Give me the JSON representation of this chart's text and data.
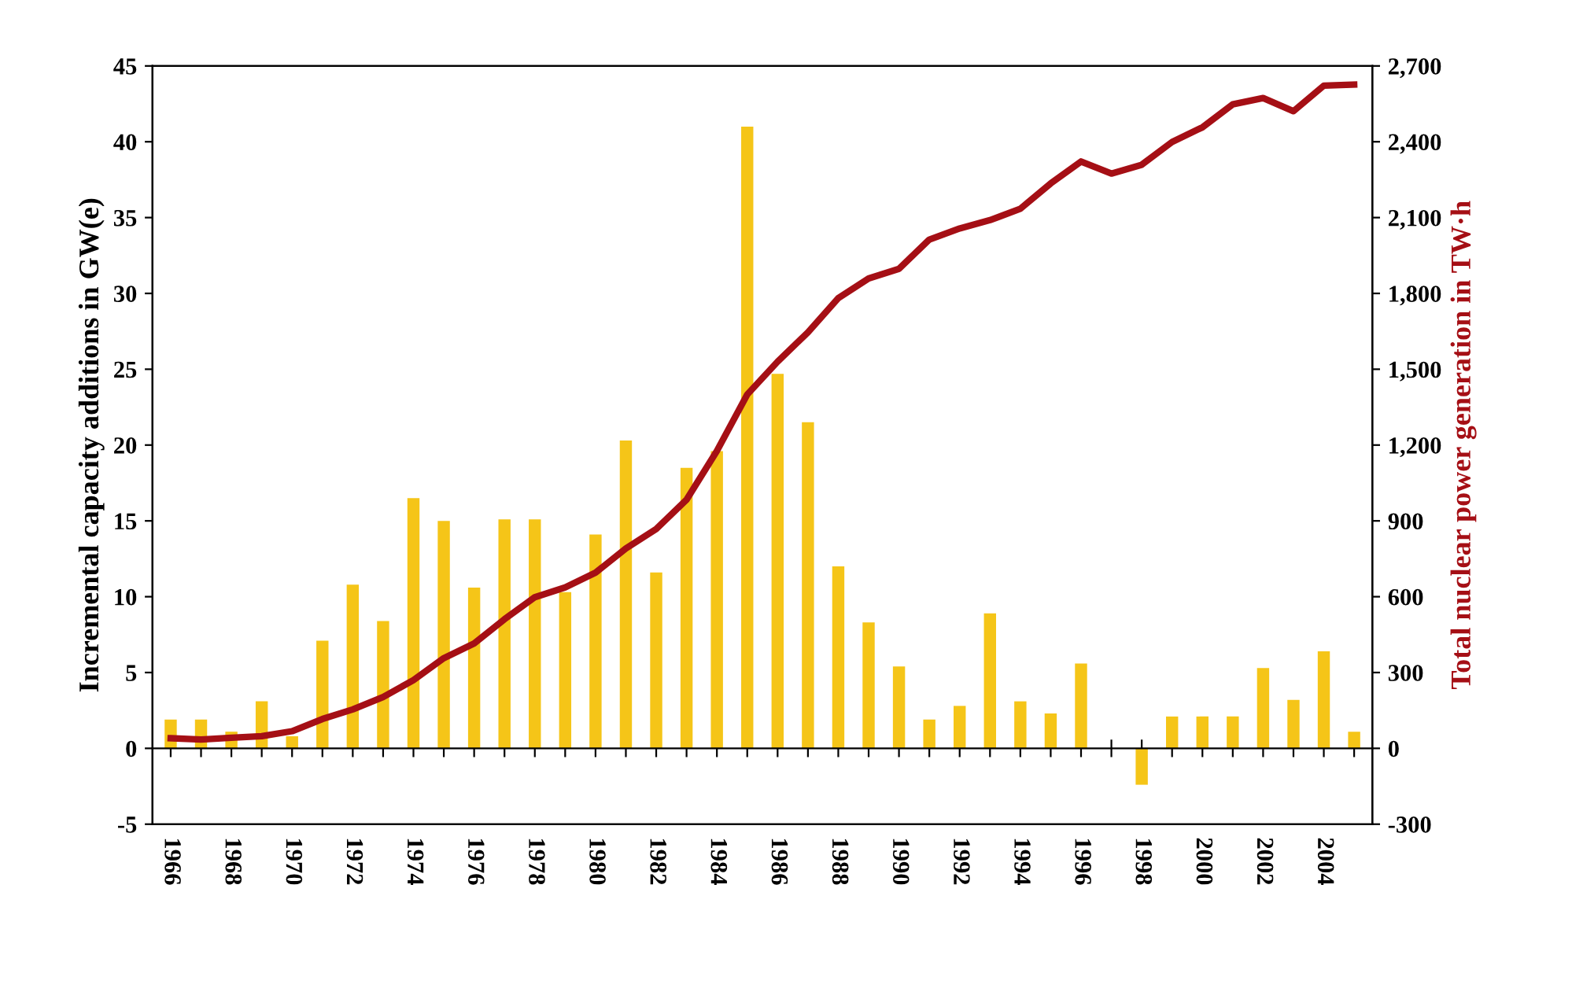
{
  "chart_data": {
    "type": "bar",
    "ylabel": "Incremental capacity additions in GW(e)",
    "y2label": "Total nuclear power generation in TW·h",
    "categories": [
      "1966",
      null,
      "1968",
      null,
      "1970",
      null,
      "1972",
      null,
      "1974",
      null,
      "1976",
      null,
      "1978",
      null,
      "1980",
      null,
      "1982",
      null,
      "1984",
      null,
      "1986",
      null,
      "1988",
      null,
      "1990",
      null,
      "1992",
      null,
      "1994",
      null,
      "1996",
      null,
      "1998",
      null,
      "2000",
      null,
      "2002",
      null,
      "2004",
      null
    ],
    "series": [
      {
        "color": "#f5c518",
        "values": [
          1.9,
          1.9,
          1.1,
          3.1,
          0.8,
          7.1,
          10.8,
          8.4,
          16.5,
          15.0,
          10.6,
          15.1,
          15.1,
          10.3,
          14.1,
          20.3,
          11.6,
          18.5,
          19.6,
          41.0,
          24.7,
          21.5,
          12.0,
          8.3,
          5.4,
          1.9,
          2.8,
          8.9,
          3.1,
          2.3,
          5.6,
          0,
          -2.4,
          2.1,
          2.1,
          2.1,
          5.3,
          3.2,
          6.4,
          1.1
        ]
      },
      {
        "type": "line",
        "axis": "y2",
        "color": "#a50f15",
        "values": [
          40,
          35,
          42,
          48,
          68,
          116,
          154,
          203,
          270,
          357,
          415,
          511,
          598,
          637,
          695,
          791,
          868,
          984,
          1177,
          1400,
          1530,
          1646,
          1781,
          1859,
          1897,
          2013,
          2057,
          2090,
          2135,
          2235,
          2322,
          2274,
          2309,
          2399,
          2457,
          2548,
          2573,
          2521,
          2622,
          2626
        ]
      }
    ],
    "ylim": [
      -5,
      45
    ],
    "yticks": [
      -5,
      0,
      5,
      10,
      15,
      20,
      25,
      30,
      35,
      40,
      45
    ],
    "y2lim": [
      -300,
      2700
    ],
    "y2ticks": [
      {
        "value": -300,
        "label": "-300"
      },
      0,
      300,
      600,
      900,
      {
        "value": 1200,
        "label": "1,200"
      },
      {
        "value": 1500,
        "label": "1,500"
      },
      {
        "value": 1800,
        "label": "1,800"
      },
      {
        "value": 2100,
        "label": "2,100"
      },
      {
        "value": 2400,
        "label": "2,400"
      },
      {
        "value": 2700,
        "label": "2,700"
      }
    ],
    "legend": false
  }
}
